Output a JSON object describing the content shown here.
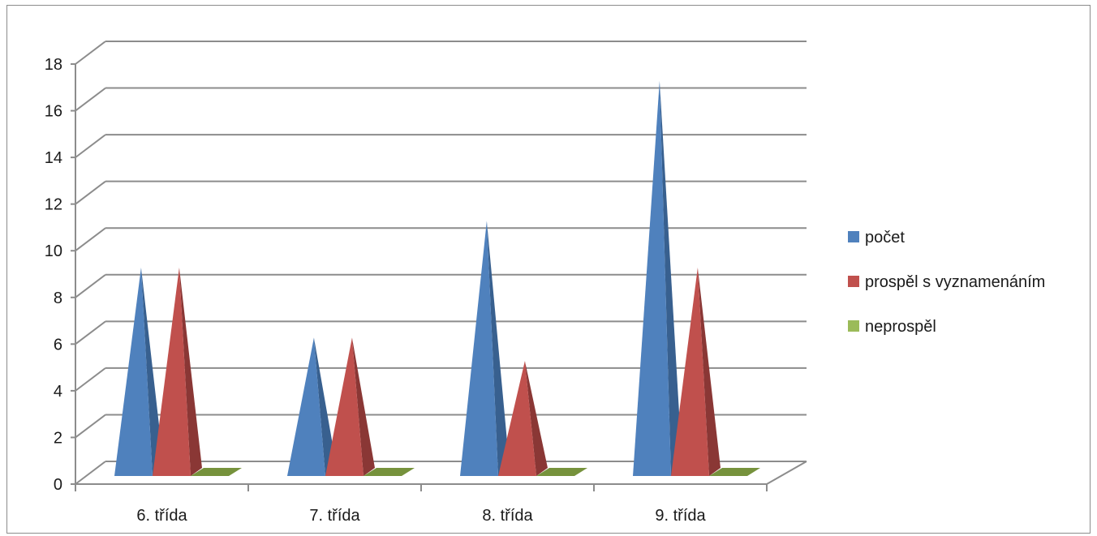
{
  "chart_data": {
    "type": "bar",
    "style": "3d-pyramid",
    "categories": [
      "6. třída",
      "7. třída",
      "8. třída",
      "9. třída"
    ],
    "series": [
      {
        "name": "počet",
        "values": [
          9,
          6,
          11,
          17
        ],
        "color": "#4F81BD",
        "dark": "#38608F"
      },
      {
        "name": "prospěl s vyznamenáním",
        "values": [
          9,
          6,
          5,
          9
        ],
        "color": "#C0504D",
        "dark": "#8A3735"
      },
      {
        "name": "neprospěl",
        "values": [
          0,
          0,
          0,
          0
        ],
        "color": "#9BBB59",
        "dark": "#76923C"
      }
    ],
    "ylim": [
      0,
      18
    ],
    "yticks": [
      0,
      2,
      4,
      6,
      8,
      10,
      12,
      14,
      16,
      18
    ],
    "title": "",
    "xlabel": "",
    "ylabel": "",
    "grid": true,
    "legend_position": "right"
  }
}
